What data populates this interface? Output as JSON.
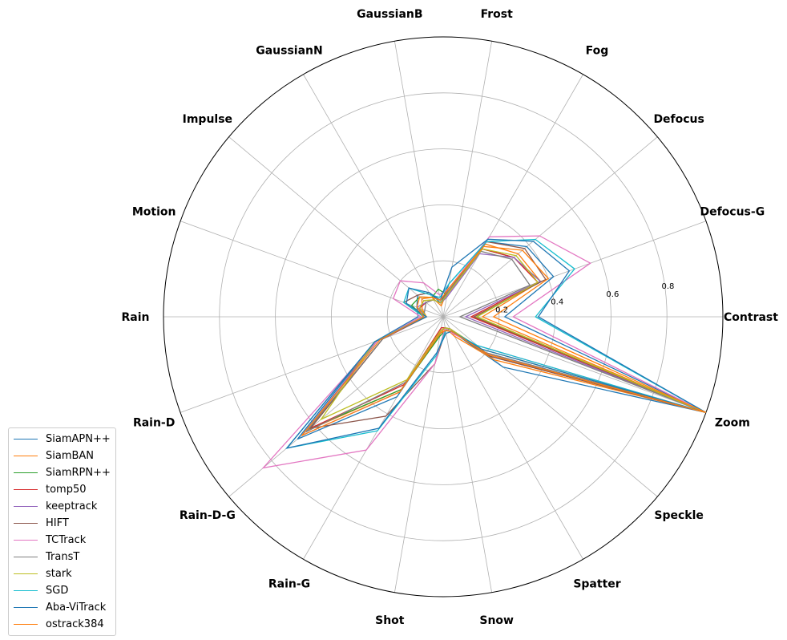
{
  "chart_data": {
    "type": "radar",
    "categories": [
      "Contrast",
      "Defocus-G",
      "Defocus",
      "Fog",
      "Frost",
      "GaussianB",
      "GaussianN",
      "Impulse",
      "Motion",
      "Rain",
      "Rain-D",
      "Rain-D-G",
      "Rain-G",
      "Shot",
      "Snow",
      "Spatter",
      "Speckle",
      "Zoom"
    ],
    "rticks": [
      0.2,
      0.4,
      0.6,
      0.8
    ],
    "rtick_labels": [
      "0.2",
      "0.4",
      "0.6",
      "0.8"
    ],
    "rlim": [
      0,
      1.0
    ],
    "legend_position": "lower-left",
    "series": [
      {
        "name": "SiamAPN++",
        "color": "#1f77b4",
        "values": [
          0.22,
          0.42,
          0.39,
          0.31,
          0.12,
          0.05,
          0.1,
          0.12,
          0.1,
          0.09,
          0.26,
          0.68,
          0.33,
          0.06,
          0.05,
          0.06,
          0.28,
          1.0
        ]
      },
      {
        "name": "SiamBAN",
        "color": "#ff7f0e",
        "values": [
          0.14,
          0.37,
          0.35,
          0.3,
          0.1,
          0.04,
          0.08,
          0.1,
          0.08,
          0.06,
          0.26,
          0.63,
          0.3,
          0.06,
          0.04,
          0.08,
          0.24,
          1.0
        ]
      },
      {
        "name": "SiamRPN++",
        "color": "#2ca02c",
        "values": [
          0.12,
          0.37,
          0.33,
          0.28,
          0.08,
          0.1,
          0.08,
          0.11,
          0.12,
          0.07,
          0.23,
          0.62,
          0.3,
          0.07,
          0.05,
          0.05,
          0.22,
          1.0
        ]
      },
      {
        "name": "tomp50",
        "color": "#d62728",
        "values": [
          0.1,
          0.36,
          0.33,
          0.28,
          0.08,
          0.05,
          0.07,
          0.08,
          0.09,
          0.06,
          0.23,
          0.62,
          0.28,
          0.04,
          0.04,
          0.05,
          0.2,
          1.0
        ]
      },
      {
        "name": "keeptrack",
        "color": "#9467bd",
        "values": [
          0.08,
          0.37,
          0.33,
          0.26,
          0.07,
          0.05,
          0.07,
          0.08,
          0.1,
          0.06,
          0.25,
          0.66,
          0.31,
          0.05,
          0.04,
          0.05,
          0.22,
          1.0
        ]
      },
      {
        "name": "HIFT",
        "color": "#8c564b",
        "values": [
          0.11,
          0.39,
          0.38,
          0.31,
          0.09,
          0.06,
          0.1,
          0.12,
          0.15,
          0.07,
          0.23,
          0.62,
          0.41,
          0.17,
          0.05,
          0.06,
          0.22,
          1.0
        ]
      },
      {
        "name": "TCTrack",
        "color": "#e377c2",
        "values": [
          0.25,
          0.56,
          0.45,
          0.33,
          0.1,
          0.08,
          0.14,
          0.2,
          0.19,
          0.08,
          0.25,
          0.84,
          0.55,
          0.17,
          0.04,
          0.07,
          0.16,
          1.0
        ]
      },
      {
        "name": "TransT",
        "color": "#7f7f7f",
        "values": [
          0.06,
          0.33,
          0.32,
          0.27,
          0.09,
          0.05,
          0.07,
          0.08,
          0.07,
          0.07,
          0.23,
          0.64,
          0.27,
          0.05,
          0.04,
          0.05,
          0.2,
          1.0
        ]
      },
      {
        "name": "stark",
        "color": "#bcbd22",
        "values": [
          0.12,
          0.36,
          0.34,
          0.28,
          0.08,
          0.05,
          0.07,
          0.09,
          0.09,
          0.06,
          0.26,
          0.57,
          0.26,
          0.05,
          0.04,
          0.05,
          0.18,
          1.0
        ]
      },
      {
        "name": "SGD",
        "color": "#17becf",
        "values": [
          0.33,
          0.5,
          0.43,
          0.31,
          0.12,
          0.07,
          0.09,
          0.16,
          0.15,
          0.07,
          0.26,
          0.73,
          0.47,
          0.14,
          0.05,
          0.06,
          0.16,
          1.0
        ]
      },
      {
        "name": "Aba-ViTrack",
        "color": "#1f77b4",
        "values": [
          0.34,
          0.48,
          0.42,
          0.32,
          0.18,
          0.06,
          0.1,
          0.16,
          0.14,
          0.06,
          0.26,
          0.73,
          0.46,
          0.13,
          0.06,
          0.06,
          0.18,
          1.0
        ]
      },
      {
        "name": "ostrack384",
        "color": "#ff7f0e",
        "values": [
          0.18,
          0.4,
          0.37,
          0.29,
          0.1,
          0.06,
          0.08,
          0.11,
          0.1,
          0.07,
          0.24,
          0.66,
          0.31,
          0.06,
          0.05,
          0.06,
          0.21,
          1.0
        ]
      }
    ]
  }
}
